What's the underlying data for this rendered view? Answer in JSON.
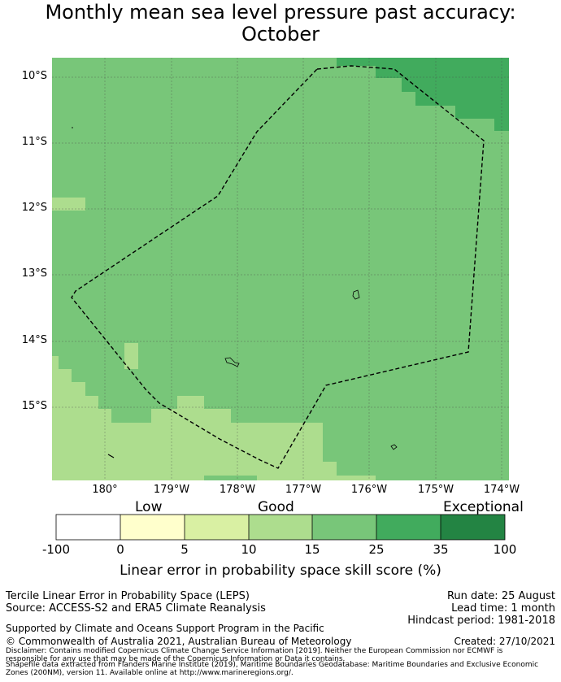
{
  "title": {
    "line1": "Monthly mean sea level pressure past accuracy:",
    "line2": "October"
  },
  "map": {
    "latitude_labels": [
      "10°S",
      "11°S",
      "12°S",
      "13°S",
      "14°S",
      "15°S"
    ],
    "longitude_labels": [
      "180°",
      "179°W",
      "178°W",
      "177°W",
      "176°W",
      "175°W",
      "174°W"
    ],
    "boundary_style": "dashed black line (Exclusive Economic Zone)",
    "dominant_category": "15-25"
  },
  "legend": {
    "categories": [
      "Low",
      "Good",
      "Exceptional"
    ],
    "ticks": [
      "-100",
      "0",
      "5",
      "10",
      "15",
      "25",
      "35",
      "100"
    ],
    "colors": [
      "#ffffff",
      "#ffffcc",
      "#d9f0a3",
      "#addd8e",
      "#78c679",
      "#41ab5d",
      "#238443"
    ],
    "label": "Linear error in probability space skill score (%)"
  },
  "footer": {
    "product": "Tercile Linear Error in Probability Space (LEPS)",
    "source": "Source: ACCESS-S2 and ERA5 Climate Reanalysis",
    "support": "Supported by Climate and Oceans Support Program in the Pacific",
    "copyright": "© Commonwealth of Australia 2021, Australian Bureau of Meteorology",
    "run_date": "Run date: 25 August",
    "lead_time": "Lead time: 1 month",
    "hindcast": "Hindcast period: 1981-2018",
    "created": "Created: 27/10/2021",
    "disclaimer1": "Disclaimer: Contains modified Copernicus Climate Change Service Information [2019]. Neither the European Commission nor ECMWF is",
    "disclaimer2": "responsible for any use that may be made of the Copernicus Information or Data it contains.",
    "disclaimer3": "Shapefile data extracted from Flanders Marine Institute (2019), Maritime Boundaries Geodatabase: Maritime Boundaries and Exclusive Economic",
    "disclaimer4": "Zones (200NM), version 11. Available online at http://www.marineregions.org/."
  }
}
